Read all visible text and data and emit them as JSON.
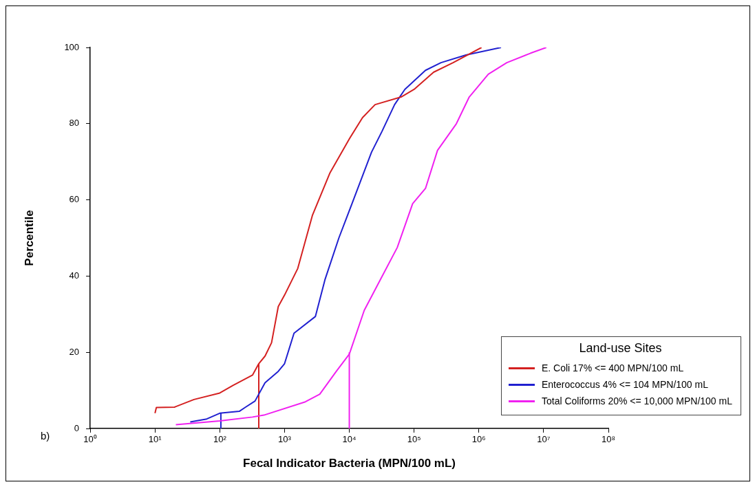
{
  "chart_data": {
    "type": "line",
    "xlabel": "Fecal Indicator Bacteria (MPN/100 mL)",
    "ylabel": "Percentile",
    "legend_title": "Land-use Sites",
    "log": "x",
    "xlim": [
      1,
      100000000
    ],
    "xticks": [
      {
        "value": 1,
        "label": "10⁰"
      },
      {
        "value": 10,
        "label": "10¹"
      },
      {
        "value": 100,
        "label": "10²"
      },
      {
        "value": 1000,
        "label": "10³"
      },
      {
        "value": 10000,
        "label": "10⁴"
      },
      {
        "value": 100000,
        "label": "10⁵"
      },
      {
        "value": 1000000,
        "label": "10⁶"
      },
      {
        "value": 10000000,
        "label": "10⁷"
      },
      {
        "value": 100000000,
        "label": "10⁸"
      }
    ],
    "ylim": [
      0,
      100
    ],
    "yticks": [
      0,
      20,
      40,
      60,
      80,
      100
    ],
    "grid": false,
    "legend": "bottom right",
    "marker": "none",
    "line_style": "solid",
    "annotations": [
      "b)"
    ],
    "series": [
      {
        "name": "E. Coli  17% <= 400 MPN/100 mL",
        "color": "#d42020",
        "x": [
          10,
          10.5,
          20,
          40,
          100,
          160,
          320,
          400,
          500,
          630,
          800,
          1000,
          1600,
          2700,
          5000,
          10000,
          16000,
          25000,
          63000,
          100000,
          200000,
          400000,
          1100000
        ],
        "values": [
          4,
          5.5,
          5.6,
          7.6,
          9.3,
          11.3,
          14,
          17,
          19,
          22.5,
          32,
          35,
          42,
          56,
          67,
          76,
          81.6,
          85,
          87,
          89,
          93.5,
          96,
          100
        ]
      },
      {
        "name": "Enterococcus  4% <= 104 MPN/100 mL",
        "color": "#2020d0",
        "x": [
          35,
          63,
          100,
          200,
          250,
          350,
          500,
          800,
          1000,
          1400,
          3000,
          4200,
          6900,
          11000,
          22000,
          32000,
          50000,
          72000,
          150000,
          260000,
          630000,
          2200000
        ],
        "values": [
          1.7,
          2.5,
          4,
          4.5,
          5.6,
          7.2,
          12,
          15,
          17,
          25,
          29.4,
          39,
          50,
          59,
          72.5,
          78,
          85,
          89,
          94,
          96,
          98,
          100
        ]
      },
      {
        "name": "Total Coliforms 20% <= 10,000 MPN/100 mL",
        "color": "#f020f0",
        "x": [
          21,
          100,
          320,
          480,
          2100,
          3500,
          6300,
          10000,
          17000,
          30000,
          55000,
          95000,
          150000,
          230000,
          450000,
          710000,
          1400000,
          2700000,
          6300000,
          11000000
        ],
        "values": [
          1,
          2,
          3,
          3.5,
          7,
          9,
          15,
          19.5,
          31,
          39,
          47.5,
          59,
          63,
          73,
          80,
          87,
          93,
          96,
          98.5,
          100
        ]
      },
      {
        "color": "#d42020",
        "x": [
          400,
          400
        ],
        "values": [
          0,
          17
        ]
      },
      {
        "color": "#2020d0",
        "x": [
          104,
          104
        ],
        "values": [
          0,
          4
        ]
      },
      {
        "color": "#f020f0",
        "x": [
          10000,
          10000
        ],
        "values": [
          0,
          20
        ]
      }
    ]
  }
}
